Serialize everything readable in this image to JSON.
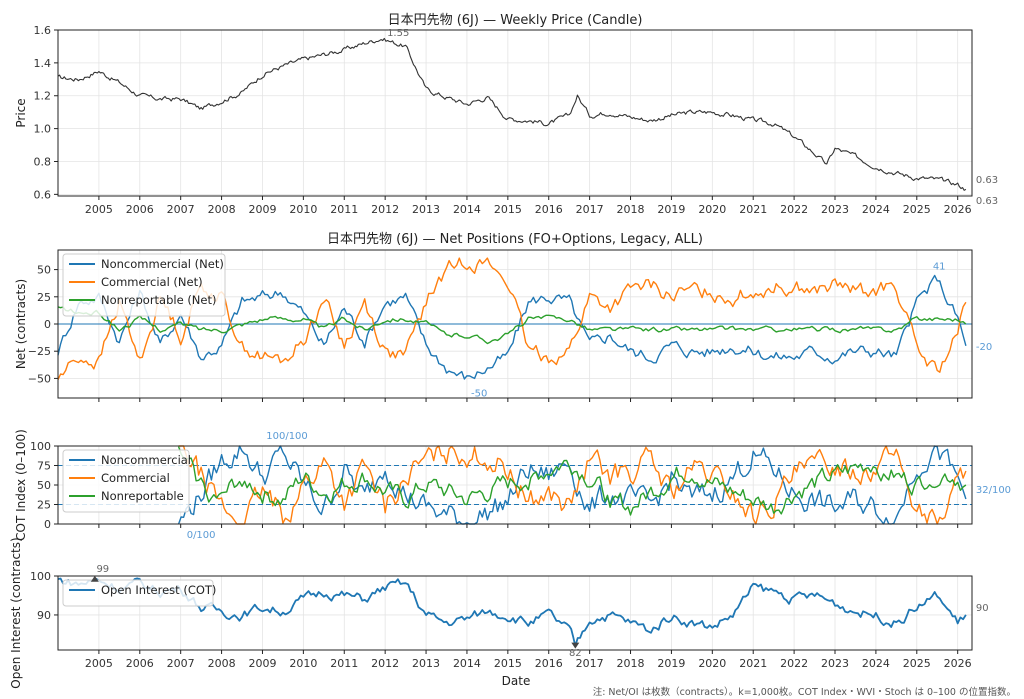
{
  "chart_data": [
    {
      "type": "line",
      "title": "日本円先物 (6J) — Weekly Price (Candle)",
      "ylabel": "Price",
      "ylim": [
        0.59,
        1.6
      ],
      "yticks": [
        "0.6",
        "0.8",
        "1.0",
        "1.2",
        "1.4",
        "1.6"
      ],
      "grid": true,
      "color": "#333333",
      "x": [
        2004.0,
        2004.5,
        2005.0,
        2005.5,
        2006.0,
        2006.5,
        2007.0,
        2007.5,
        2008.0,
        2008.5,
        2009.0,
        2009.5,
        2010.0,
        2010.5,
        2011.0,
        2011.5,
        2011.9,
        2012.5,
        2013.0,
        2013.5,
        2014.0,
        2014.5,
        2015.0,
        2015.5,
        2016.0,
        2016.5,
        2016.7,
        2017.0,
        2017.5,
        2018.0,
        2018.5,
        2019.0,
        2019.5,
        2020.0,
        2020.5,
        2021.0,
        2021.5,
        2022.0,
        2022.5,
        2022.8,
        2023.0,
        2023.5,
        2024.0,
        2024.5,
        2025.0,
        2025.5,
        2026.0,
        2026.2
      ],
      "y": [
        1.31,
        1.3,
        1.35,
        1.28,
        1.2,
        1.18,
        1.18,
        1.12,
        1.17,
        1.22,
        1.33,
        1.38,
        1.42,
        1.45,
        1.48,
        1.52,
        1.55,
        1.5,
        1.24,
        1.19,
        1.15,
        1.19,
        1.06,
        1.05,
        1.03,
        1.08,
        1.2,
        1.08,
        1.1,
        1.07,
        1.05,
        1.08,
        1.1,
        1.1,
        1.08,
        1.05,
        1.03,
        0.95,
        0.85,
        0.78,
        0.88,
        0.83,
        0.77,
        0.73,
        0.7,
        0.69,
        0.66,
        0.63
      ],
      "annotations": [
        {
          "text": "1.55"
        },
        {
          "text": "0.63"
        },
        {
          "text": "0.63"
        }
      ]
    },
    {
      "type": "line",
      "title": "日本円先物 (6J) — Net Positions (FO+Options, Legacy, ALL)",
      "ylabel": "Net (contracts)",
      "ylim": [
        -68,
        68
      ],
      "yticks": [
        "−50",
        "−25",
        "0",
        "25",
        "50"
      ],
      "grid": true,
      "legend_position": "top-left",
      "x": [
        2004.0,
        2004.5,
        2005.0,
        2005.5,
        2006.0,
        2006.5,
        2007.0,
        2007.5,
        2008.0,
        2008.5,
        2009.0,
        2009.5,
        2010.0,
        2010.5,
        2011.0,
        2011.5,
        2012.0,
        2012.5,
        2013.0,
        2013.5,
        2014.0,
        2014.5,
        2015.0,
        2015.5,
        2016.0,
        2016.5,
        2017.0,
        2017.5,
        2018.0,
        2018.5,
        2019.0,
        2019.5,
        2020.0,
        2020.5,
        2021.0,
        2021.5,
        2022.0,
        2022.5,
        2023.0,
        2023.5,
        2024.0,
        2024.5,
        2025.0,
        2025.5,
        2026.0,
        2026.2
      ],
      "series": [
        {
          "name": "Noncommercial (Net)",
          "color": "#1f77b4",
          "values": [
            -25,
            20,
            25,
            -15,
            30,
            -20,
            10,
            -30,
            -20,
            20,
            25,
            30,
            10,
            -20,
            15,
            -15,
            20,
            25,
            -20,
            -40,
            -50,
            -40,
            -30,
            20,
            25,
            20,
            -20,
            -10,
            -25,
            -30,
            -20,
            -25,
            -25,
            -20,
            -25,
            -30,
            -30,
            -25,
            -30,
            -25,
            -25,
            -30,
            20,
            41,
            5,
            -20
          ]
        },
        {
          "name": "Commercial (Net)",
          "color": "#ff7f0e",
          "values": [
            -50,
            -30,
            -35,
            20,
            -35,
            25,
            -10,
            35,
            25,
            -20,
            -30,
            -35,
            -15,
            25,
            -20,
            20,
            -25,
            -30,
            20,
            50,
            60,
            55,
            40,
            -25,
            -30,
            -25,
            25,
            15,
            30,
            35,
            25,
            30,
            30,
            25,
            30,
            35,
            35,
            30,
            35,
            30,
            30,
            35,
            -25,
            -45,
            -10,
            20
          ]
        },
        {
          "name": "Nonreportable (Net)",
          "color": "#2ca02c",
          "values": [
            15,
            10,
            10,
            -5,
            5,
            -5,
            0,
            -5,
            -5,
            0,
            5,
            5,
            5,
            -5,
            5,
            -5,
            5,
            5,
            0,
            -10,
            -10,
            -15,
            -10,
            5,
            5,
            5,
            -5,
            -5,
            -5,
            -5,
            -5,
            -5,
            -5,
            -5,
            -5,
            -5,
            -5,
            -5,
            -5,
            -5,
            -5,
            -5,
            5,
            5,
            5,
            0
          ]
        }
      ],
      "annotations": [
        {
          "text": "41"
        },
        {
          "text": "-50"
        },
        {
          "text": "-20"
        }
      ]
    },
    {
      "type": "line",
      "title": "",
      "ylabel": "COT Index (0–100)",
      "ylim": [
        0,
        100
      ],
      "yticks": [
        "0",
        "25",
        "50",
        "75",
        "100"
      ],
      "reference_lines": [
        25,
        75
      ],
      "grid": true,
      "legend_position": "top-left",
      "x": [
        2006.95,
        2007.5,
        2008.0,
        2008.5,
        2009.0,
        2009.5,
        2010.0,
        2010.5,
        2011.0,
        2011.5,
        2012.0,
        2012.5,
        2013.0,
        2013.5,
        2014.0,
        2014.5,
        2015.0,
        2015.5,
        2016.0,
        2016.5,
        2017.0,
        2017.5,
        2018.0,
        2018.5,
        2019.0,
        2019.5,
        2020.0,
        2020.5,
        2021.0,
        2021.5,
        2022.0,
        2022.5,
        2023.0,
        2023.5,
        2024.0,
        2024.5,
        2025.0,
        2025.5,
        2026.0,
        2026.2
      ],
      "series": [
        {
          "name": "Noncommercial",
          "color": "#1f77b4",
          "values": [
            0,
            40,
            80,
            100,
            60,
            90,
            50,
            20,
            70,
            30,
            80,
            40,
            20,
            10,
            5,
            15,
            30,
            70,
            60,
            80,
            20,
            40,
            30,
            20,
            60,
            30,
            40,
            60,
            90,
            70,
            40,
            30,
            20,
            30,
            20,
            10,
            80,
            100,
            50,
            32
          ]
        },
        {
          "name": "Commercial",
          "color": "#ff7f0e",
          "values": [
            100,
            60,
            20,
            0,
            40,
            10,
            50,
            80,
            30,
            70,
            20,
            60,
            80,
            90,
            95,
            85,
            70,
            30,
            40,
            20,
            80,
            60,
            70,
            80,
            40,
            70,
            60,
            40,
            10,
            30,
            60,
            70,
            80,
            70,
            80,
            90,
            20,
            0,
            50,
            68
          ]
        },
        {
          "name": "Nonreportable",
          "color": "#2ca02c",
          "values": [
            90,
            50,
            30,
            60,
            40,
            30,
            60,
            40,
            50,
            60,
            40,
            30,
            50,
            40,
            30,
            40,
            50,
            60,
            70,
            80,
            60,
            30,
            20,
            40,
            60,
            70,
            50,
            40,
            30,
            20,
            40,
            50,
            60,
            70,
            80,
            60,
            50,
            70,
            60,
            50
          ]
        }
      ],
      "annotations": [
        {
          "text": "100/100"
        },
        {
          "text": "0/100"
        },
        {
          "text": "32/100"
        }
      ]
    },
    {
      "type": "line",
      "title": "",
      "xlabel": "Date",
      "ylabel": "Open Interest (contracts)",
      "ylim": [
        81,
        100
      ],
      "yticks": [
        "90",
        "100"
      ],
      "grid": true,
      "legend_position": "top-left",
      "x": [
        2004.0,
        2004.5,
        2005.0,
        2005.5,
        2006.0,
        2006.5,
        2007.0,
        2007.5,
        2008.0,
        2008.5,
        2009.0,
        2009.5,
        2010.0,
        2010.5,
        2011.0,
        2011.5,
        2012.0,
        2012.5,
        2013.0,
        2013.5,
        2014.0,
        2014.5,
        2015.0,
        2015.5,
        2016.0,
        2016.5,
        2016.65,
        2017.0,
        2017.5,
        2018.0,
        2018.5,
        2019.0,
        2019.5,
        2020.0,
        2020.5,
        2021.0,
        2021.5,
        2022.0,
        2022.5,
        2023.0,
        2023.5,
        2024.0,
        2024.5,
        2025.0,
        2025.5,
        2026.0,
        2026.2
      ],
      "series": [
        {
          "name": "Open Interest (COT)",
          "color": "#1f77b4",
          "values": [
            99,
            98,
            99,
            97,
            98,
            96,
            97,
            92,
            91,
            90,
            92,
            91,
            94,
            96,
            95,
            94,
            97,
            98,
            90,
            88,
            89,
            91,
            90,
            88,
            90,
            86,
            82,
            89,
            90,
            88,
            86,
            90,
            88,
            87,
            90,
            97,
            96,
            94,
            95,
            93,
            91,
            90,
            88,
            92,
            95,
            88,
            90
          ]
        }
      ],
      "annotations": [
        {
          "text": "99"
        },
        {
          "text": "82"
        },
        {
          "text": "90"
        }
      ]
    }
  ],
  "x_axis": {
    "range": [
      2004.0,
      2026.35
    ],
    "ticks": [
      "2005",
      "2006",
      "2007",
      "2008",
      "2009",
      "2010",
      "2011",
      "2012",
      "2013",
      "2014",
      "2015",
      "2016",
      "2017",
      "2018",
      "2019",
      "2020",
      "2021",
      "2022",
      "2023",
      "2024",
      "2025",
      "2026"
    ]
  },
  "note": "注: Net/OI は枚数（contracts）。k=1,000枚。COT Index・WVI・Stoch は 0–100 の位置指数。"
}
